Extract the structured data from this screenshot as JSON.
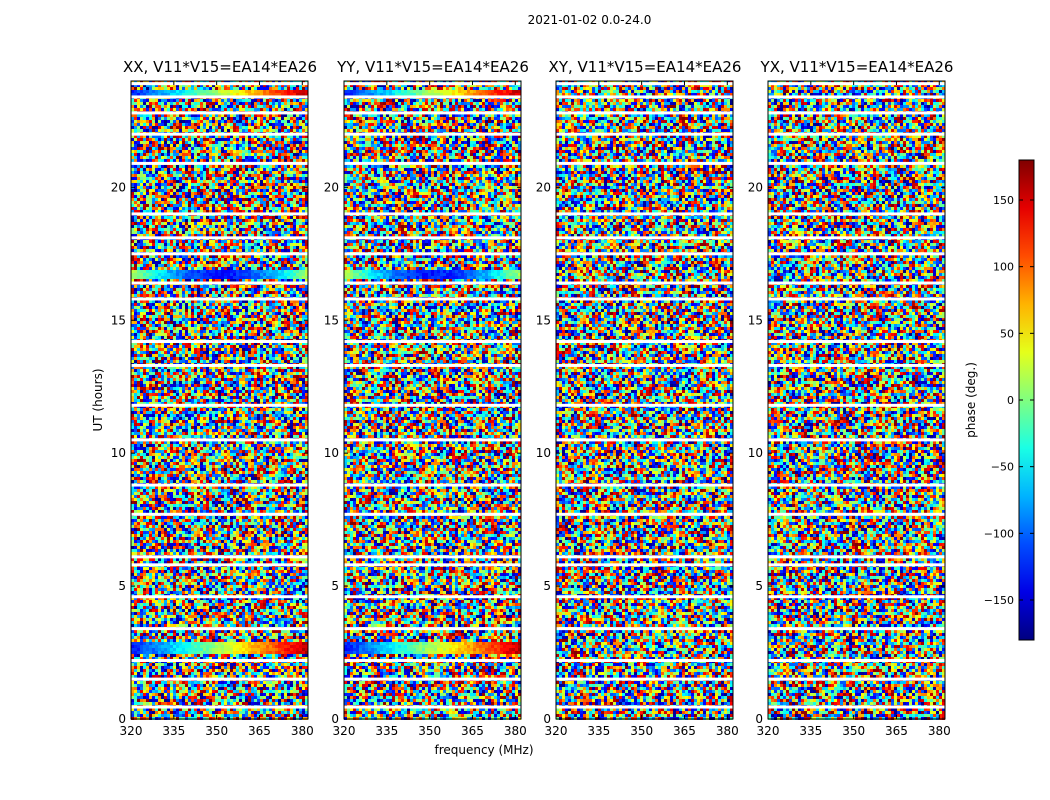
{
  "figure_title": "2021-01-02 0.0-24.0",
  "chart_data": {
    "type": "heatmap",
    "xlabel": "frequency (MHz)",
    "ylabel": "UT (hours)",
    "xlim": [
      320,
      382
    ],
    "ylim": [
      0,
      24
    ],
    "x_ticks": [
      320,
      335,
      350,
      365,
      380
    ],
    "y_ticks": [
      0,
      5,
      10,
      15,
      20
    ],
    "panels": [
      {
        "title": "XX, V11*V15=EA14*EA26",
        "structured": true
      },
      {
        "title": "YY, V11*V15=EA14*EA26",
        "structured": true
      },
      {
        "title": "XY, V11*V15=EA14*EA26",
        "structured": false
      },
      {
        "title": "YX, V11*V15=EA14*EA26",
        "structured": false
      }
    ],
    "colorbar": {
      "label": "phase (deg.)",
      "range": [
        -180,
        180
      ],
      "ticks": [
        -150,
        -100,
        -50,
        0,
        50,
        100,
        150
      ],
      "colormap": "jet"
    }
  }
}
